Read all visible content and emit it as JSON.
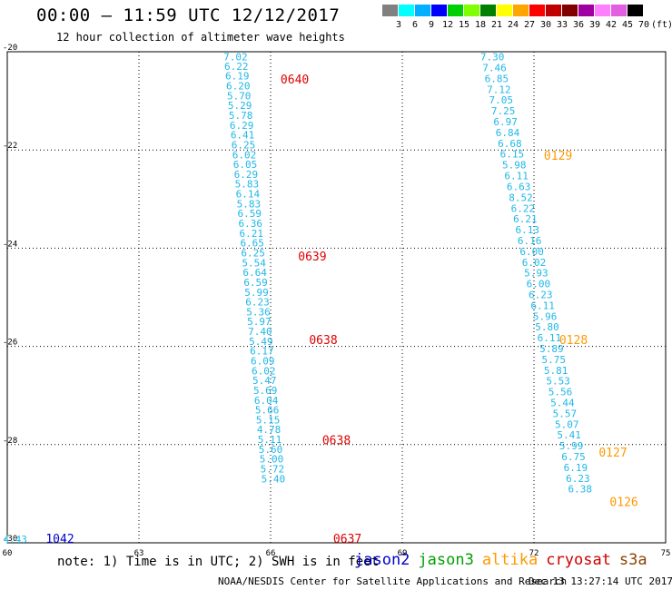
{
  "header": {
    "title": "00:00 – 11:59 UTC 12/12/2017",
    "subtitle": "12 hour collection of altimeter wave heights"
  },
  "colorbar": {
    "colors": [
      "#808080",
      "#00ffff",
      "#00b0ff",
      "#0000ff",
      "#00d000",
      "#80ff00",
      "#008000",
      "#ffff00",
      "#ffa500",
      "#ff0000",
      "#c00000",
      "#800000",
      "#a000a0",
      "#ff80ff",
      "#e060e0",
      "#000000"
    ],
    "labels": [
      "3",
      "6",
      "9",
      "12",
      "15",
      "18",
      "21",
      "24",
      "27",
      "30",
      "33",
      "36",
      "39",
      "42",
      "45",
      "70",
      "(ft)"
    ]
  },
  "note": "note: 1) Time is in UTC; 2) SWH is in feet",
  "legend": [
    {
      "name": "jason2",
      "color": "#0000cc"
    },
    {
      "name": "jason3",
      "color": "#00a000"
    },
    {
      "name": "altika",
      "color": "#ff9900"
    },
    {
      "name": "cryosat",
      "color": "#cc0000"
    },
    {
      "name": "s3a",
      "color": "#884400"
    }
  ],
  "footer": {
    "left": "NOAA/NESDIS Center for Satellite Applications and Research",
    "right": "Dec 13 13:27:14 UTC 2017"
  },
  "chart_data": {
    "type": "scatter",
    "title": "00:00 – 11:59 UTC 12/12/2017",
    "subtitle": "12 hour collection of altimeter wave heights",
    "xlim": [
      60,
      75
    ],
    "ylim": [
      -30,
      -20
    ],
    "x_ticks": [
      "60",
      "63",
      "66",
      "69",
      "72",
      "75"
    ],
    "y_ticks": [
      "-20",
      "-22",
      "-24",
      "-26",
      "-28",
      "-30"
    ],
    "x_tick_values": [
      60,
      63,
      66,
      69,
      72,
      75
    ],
    "y_tick_values": [
      -20,
      -22,
      -24,
      -26,
      -28,
      -30
    ],
    "grid": true,
    "value_color": "#20b8e8",
    "tracks": [
      {
        "points": [
          {
            "x": 65.2,
            "y": -20.03,
            "v": "7.02"
          },
          {
            "x": 65.22,
            "y": -20.22,
            "v": "6.22"
          },
          {
            "x": 65.24,
            "y": -20.42,
            "v": "6.19"
          },
          {
            "x": 65.26,
            "y": -20.62,
            "v": "6.20"
          },
          {
            "x": 65.28,
            "y": -20.82,
            "v": "5.70"
          },
          {
            "x": 65.3,
            "y": -21.02,
            "v": "5.29"
          },
          {
            "x": 65.32,
            "y": -21.22,
            "v": "5.78"
          },
          {
            "x": 65.34,
            "y": -21.42,
            "v": "6.29"
          },
          {
            "x": 65.36,
            "y": -21.62,
            "v": "6.41"
          },
          {
            "x": 65.38,
            "y": -21.82,
            "v": "6.25"
          },
          {
            "x": 65.4,
            "y": -22.02,
            "v": "6.02"
          },
          {
            "x": 65.42,
            "y": -22.22,
            "v": "6.05"
          },
          {
            "x": 65.44,
            "y": -22.42,
            "v": "6.29"
          },
          {
            "x": 65.46,
            "y": -22.62,
            "v": "5.83"
          },
          {
            "x": 65.48,
            "y": -22.82,
            "v": "6.14"
          },
          {
            "x": 65.5,
            "y": -23.02,
            "v": "5.83"
          },
          {
            "x": 65.52,
            "y": -23.22,
            "v": "6.59"
          },
          {
            "x": 65.54,
            "y": -23.42,
            "v": "6.36"
          },
          {
            "x": 65.56,
            "y": -23.62,
            "v": "6.21"
          },
          {
            "x": 65.58,
            "y": -23.82,
            "v": "6.65"
          },
          {
            "x": 65.6,
            "y": -24.02,
            "v": "6.25"
          },
          {
            "x": 65.62,
            "y": -24.22,
            "v": "5.54"
          },
          {
            "x": 65.64,
            "y": -24.42,
            "v": "6.64"
          },
          {
            "x": 65.66,
            "y": -24.62,
            "v": "6.59"
          },
          {
            "x": 65.68,
            "y": -24.82,
            "v": "5.99"
          },
          {
            "x": 65.7,
            "y": -25.02,
            "v": "6.23"
          },
          {
            "x": 65.72,
            "y": -25.22,
            "v": "5.36"
          },
          {
            "x": 65.74,
            "y": -25.42,
            "v": "5.97"
          },
          {
            "x": 65.76,
            "y": -25.62,
            "v": "7.40"
          },
          {
            "x": 65.78,
            "y": -25.82,
            "v": "5.49"
          },
          {
            "x": 65.8,
            "y": -26.02,
            "v": "6.17"
          },
          {
            "x": 65.82,
            "y": -26.22,
            "v": "6.09"
          },
          {
            "x": 65.84,
            "y": -26.42,
            "v": "6.02"
          },
          {
            "x": 65.86,
            "y": -26.62,
            "v": "5.47"
          },
          {
            "x": 65.88,
            "y": -26.82,
            "v": "5.69"
          },
          {
            "x": 65.9,
            "y": -27.02,
            "v": "6.04"
          },
          {
            "x": 65.92,
            "y": -27.22,
            "v": "5.66"
          },
          {
            "x": 65.94,
            "y": -27.42,
            "v": "5.15"
          },
          {
            "x": 65.96,
            "y": -27.62,
            "v": "4.78"
          },
          {
            "x": 65.98,
            "y": -27.82,
            "v": "5.11"
          },
          {
            "x": 66.0,
            "y": -28.02,
            "v": "5.60"
          },
          {
            "x": 66.02,
            "y": -28.22,
            "v": "5.00"
          },
          {
            "x": 66.04,
            "y": -28.42,
            "v": "5.72"
          },
          {
            "x": 66.06,
            "y": -28.62,
            "v": "5.40"
          }
        ],
        "time_labels": [
          {
            "x": 66.55,
            "y": -20.5,
            "t": "0640",
            "color": "#e00000"
          },
          {
            "x": 66.95,
            "y": -24.1,
            "t": "0639",
            "color": "#e00000"
          },
          {
            "x": 67.2,
            "y": -25.8,
            "t": "0638",
            "color": "#e00000"
          },
          {
            "x": 67.5,
            "y": -27.85,
            "t": "0638",
            "color": "#e00000"
          },
          {
            "x": 67.75,
            "y": -29.85,
            "t": "0637",
            "color": "#e00000"
          }
        ]
      },
      {
        "points": [
          {
            "x": 71.05,
            "y": -20.03,
            "v": "7.30"
          },
          {
            "x": 71.1,
            "y": -20.25,
            "v": "7.46"
          },
          {
            "x": 71.15,
            "y": -20.47,
            "v": "6.85"
          },
          {
            "x": 71.2,
            "y": -20.69,
            "v": "7.12"
          },
          {
            "x": 71.25,
            "y": -20.91,
            "v": "7.05"
          },
          {
            "x": 71.3,
            "y": -21.13,
            "v": "7.25"
          },
          {
            "x": 71.35,
            "y": -21.35,
            "v": "6.97"
          },
          {
            "x": 71.4,
            "y": -21.57,
            "v": "6.84"
          },
          {
            "x": 71.45,
            "y": -21.79,
            "v": "6.68"
          },
          {
            "x": 71.5,
            "y": -22.01,
            "v": "6.15"
          },
          {
            "x": 71.55,
            "y": -22.23,
            "v": "5.98"
          },
          {
            "x": 71.6,
            "y": -22.45,
            "v": "6.11"
          },
          {
            "x": 71.65,
            "y": -22.67,
            "v": "6.63"
          },
          {
            "x": 71.7,
            "y": -22.89,
            "v": "8.52"
          },
          {
            "x": 71.75,
            "y": -23.11,
            "v": "6.22"
          },
          {
            "x": 71.8,
            "y": -23.33,
            "v": "6.21"
          },
          {
            "x": 71.85,
            "y": -23.55,
            "v": "6.13"
          },
          {
            "x": 71.9,
            "y": -23.77,
            "v": "6.16"
          },
          {
            "x": 71.95,
            "y": -23.99,
            "v": "6.00"
          },
          {
            "x": 72.0,
            "y": -24.21,
            "v": "6.02"
          },
          {
            "x": 72.05,
            "y": -24.43,
            "v": "5.93"
          },
          {
            "x": 72.1,
            "y": -24.65,
            "v": "6.00"
          },
          {
            "x": 72.15,
            "y": -24.87,
            "v": "6.23"
          },
          {
            "x": 72.2,
            "y": -25.09,
            "v": "6.11"
          },
          {
            "x": 72.25,
            "y": -25.31,
            "v": "5.96"
          },
          {
            "x": 72.3,
            "y": -25.53,
            "v": "5.80"
          },
          {
            "x": 72.35,
            "y": -25.75,
            "v": "6.11"
          },
          {
            "x": 72.4,
            "y": -25.97,
            "v": "5.89"
          },
          {
            "x": 72.45,
            "y": -26.19,
            "v": "5.75"
          },
          {
            "x": 72.5,
            "y": -26.41,
            "v": "5.81"
          },
          {
            "x": 72.55,
            "y": -26.63,
            "v": "5.53"
          },
          {
            "x": 72.6,
            "y": -26.85,
            "v": "5.56"
          },
          {
            "x": 72.65,
            "y": -27.07,
            "v": "5.44"
          },
          {
            "x": 72.7,
            "y": -27.29,
            "v": "5.57"
          },
          {
            "x": 72.75,
            "y": -27.51,
            "v": "5.07"
          },
          {
            "x": 72.8,
            "y": -27.73,
            "v": "5.41"
          },
          {
            "x": 72.85,
            "y": -27.95,
            "v": "5.99"
          },
          {
            "x": 72.9,
            "y": -28.17,
            "v": "6.75"
          },
          {
            "x": 72.95,
            "y": -28.39,
            "v": "6.19"
          },
          {
            "x": 73.0,
            "y": -28.61,
            "v": "6.23"
          },
          {
            "x": 73.05,
            "y": -28.83,
            "v": "6.38"
          }
        ],
        "time_labels": [
          {
            "x": 72.55,
            "y": -22.05,
            "t": "0129",
            "color": "#ff9900"
          },
          {
            "x": 72.9,
            "y": -25.8,
            "t": "0128",
            "color": "#ff9900"
          },
          {
            "x": 73.8,
            "y": -28.1,
            "t": "0127",
            "color": "#ff9900"
          },
          {
            "x": 74.05,
            "y": -29.1,
            "t": "0126",
            "color": "#ff9900"
          }
        ]
      },
      {
        "points": [
          {
            "x": 60.18,
            "y": -29.85,
            "v": "4.43"
          }
        ],
        "time_labels": [
          {
            "x": 61.2,
            "y": -29.85,
            "t": "1042",
            "color": "#0000cc"
          }
        ]
      }
    ]
  }
}
